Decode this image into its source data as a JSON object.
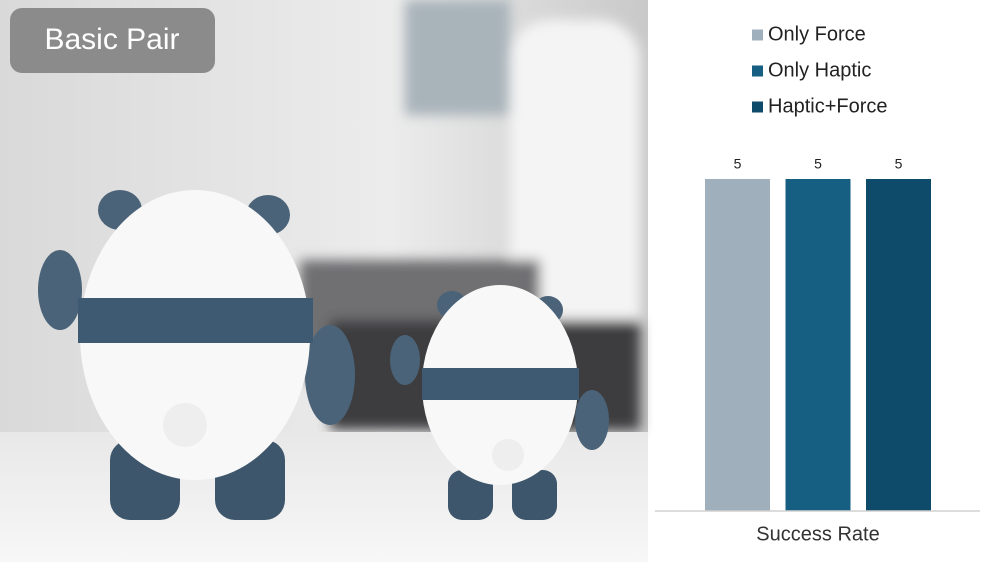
{
  "image_label": "Basic Pair",
  "chart_data": {
    "type": "bar",
    "categories": [
      "Success Rate"
    ],
    "series": [
      {
        "name": "Only Force",
        "color": "#a0afbc",
        "values": [
          5
        ]
      },
      {
        "name": "Only Haptic",
        "color": "#165f82",
        "values": [
          5
        ]
      },
      {
        "name": "Haptic+Force",
        "color": "#0e4a69",
        "values": [
          5
        ]
      }
    ],
    "ylim": [
      0,
      5
    ],
    "legend": "top"
  }
}
